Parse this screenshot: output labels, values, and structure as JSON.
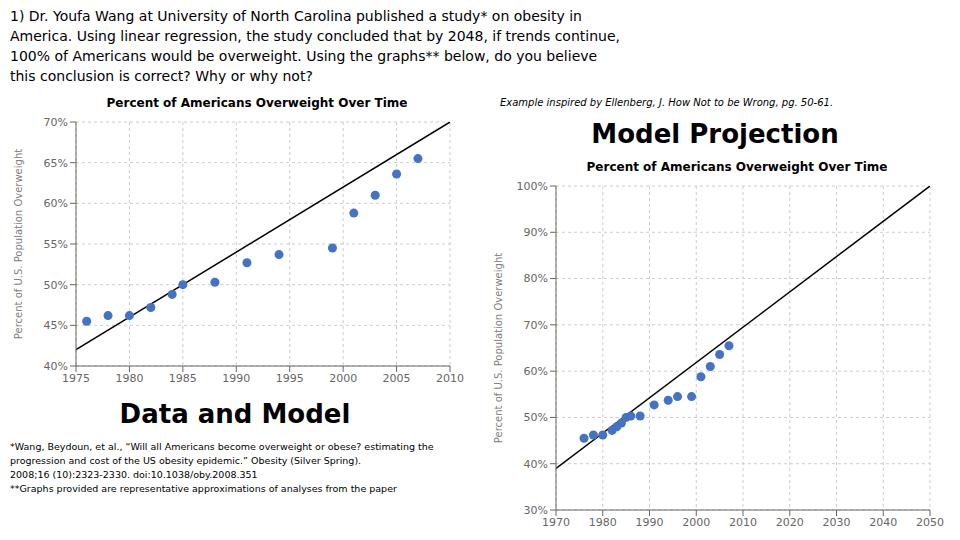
{
  "chart_data": [
    {
      "type": "scatter",
      "title": "Percent of Americans Overweight Over Time",
      "ylabel": "Percent of U.S. Population Overweight",
      "annotations": [
        "1) Dr. Youfa Wang at University of North Carolina published a study* on obesity in\nAmerica. Using linear regression, the study concluded that by 2048, if trends continue,\n100% of Americans would be overweight. Using the graphs** below, do you believe\nthis conclusion is correct? Why or why not?",
        "Data and Model",
        "*Wang, Beydoun, et al., “Will all Americans become overweight or obese? estimating the\nprogression and cost of the US obesity epidemic.” Obesity (Silver Spring).\n2008;16 (10):2323-2330.  doi:10.1038/oby.2008.351\n**Graphs provided are representative approximations of analyses from the paper"
      ],
      "series": [
        {
          "type": "scatter",
          "color": "#4472C4",
          "x": [
            1976,
            1978,
            1980,
            1982,
            1984,
            1985,
            1988,
            1991,
            1994,
            1999,
            2001,
            2003,
            2005,
            2007
          ],
          "values": [
            0.455,
            0.462,
            0.462,
            0.472,
            0.488,
            0.5,
            0.503,
            0.527,
            0.537,
            0.545,
            0.588,
            0.61,
            0.636,
            0.655
          ]
        },
        {
          "type": "line",
          "color": "black",
          "x": [
            1975,
            2010
          ],
          "values": [
            0.42,
            0.7
          ]
        }
      ],
      "xlim": [
        1975,
        2010
      ],
      "ylim": [
        0.4,
        0.7
      ],
      "xticks": [
        1975,
        1980,
        1985,
        1990,
        1995,
        2000,
        2005,
        2010
      ],
      "yticks": [
        {
          "value": 0.4,
          "label": "40%"
        },
        {
          "value": 0.45,
          "label": "45%"
        },
        {
          "value": 0.5,
          "label": "50%"
        },
        {
          "value": 0.55,
          "label": "55%"
        },
        {
          "value": 0.6,
          "label": "60%"
        },
        {
          "value": 0.65,
          "label": "65%"
        },
        {
          "value": 0.7,
          "label": "70%"
        }
      ],
      "grid": true
    },
    {
      "type": "scatter",
      "title": "Percent of Americans Overweight Over Time",
      "ylabel": "Percent of U.S. Population Overweight",
      "annotations": [
        "Model Projection",
        "Example inspired by Ellenberg, J. How Not to be Wrong, pg. 50-61."
      ],
      "series": [
        {
          "type": "scatter",
          "color": "#4472C4",
          "x": [
            1976,
            1978,
            1980,
            1982,
            1983,
            1984,
            1985,
            1986,
            1988,
            1991,
            1994,
            1996,
            1999,
            2001,
            2003,
            2005,
            2007
          ],
          "values": [
            0.455,
            0.462,
            0.462,
            0.472,
            0.48,
            0.488,
            0.5,
            0.503,
            0.503,
            0.527,
            0.537,
            0.545,
            0.545,
            0.588,
            0.61,
            0.636,
            0.655
          ]
        },
        {
          "type": "line",
          "color": "black",
          "x": [
            1970,
            2050
          ],
          "values": [
            0.39,
            1.0
          ]
        }
      ],
      "xlim": [
        1970,
        2050
      ],
      "ylim": [
        0.3,
        1.0
      ],
      "xticks": [
        1970,
        1980,
        1990,
        2000,
        2010,
        2020,
        2030,
        2040,
        2050
      ],
      "yticks": [
        {
          "value": 0.3,
          "label": "30%"
        },
        {
          "value": 0.4,
          "label": "40%"
        },
        {
          "value": 0.5,
          "label": "50%"
        },
        {
          "value": 0.6,
          "label": "60%"
        },
        {
          "value": 0.7,
          "label": "70%"
        },
        {
          "value": 0.8,
          "label": "80%"
        },
        {
          "value": 0.9,
          "label": "90%"
        },
        {
          "value": 1.0,
          "label": "100%"
        }
      ],
      "grid": true
    }
  ]
}
